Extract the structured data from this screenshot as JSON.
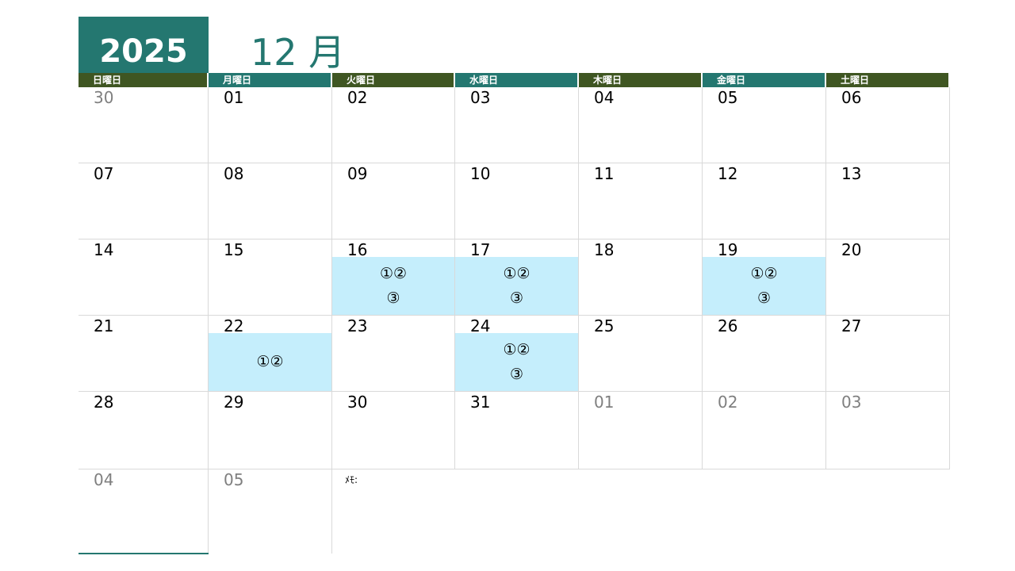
{
  "header": {
    "year": "2025",
    "month": "12 月"
  },
  "colors": {
    "teal": "#247770",
    "olive": "#3f5622",
    "highlight": "#c5eefc"
  },
  "weekdays": [
    {
      "label": "日曜日",
      "color": "#3f5622"
    },
    {
      "label": "月曜日",
      "color": "#247770"
    },
    {
      "label": "火曜日",
      "color": "#3f5622"
    },
    {
      "label": "水曜日",
      "color": "#247770"
    },
    {
      "label": "木曜日",
      "color": "#3f5622"
    },
    {
      "label": "金曜日",
      "color": "#247770"
    },
    {
      "label": "土曜日",
      "color": "#3f5622"
    }
  ],
  "weeks": [
    [
      {
        "day": "30",
        "other": true
      },
      {
        "day": "01"
      },
      {
        "day": "02"
      },
      {
        "day": "03"
      },
      {
        "day": "04"
      },
      {
        "day": "05"
      },
      {
        "day": "06"
      }
    ],
    [
      {
        "day": "07"
      },
      {
        "day": "08"
      },
      {
        "day": "09"
      },
      {
        "day": "10"
      },
      {
        "day": "11"
      },
      {
        "day": "12"
      },
      {
        "day": "13"
      }
    ],
    [
      {
        "day": "14"
      },
      {
        "day": "15"
      },
      {
        "day": "16",
        "marks": [
          "①②",
          "③"
        ]
      },
      {
        "day": "17",
        "marks": [
          "①②",
          "③"
        ]
      },
      {
        "day": "18"
      },
      {
        "day": "19",
        "marks": [
          "①②",
          "③"
        ]
      },
      {
        "day": "20"
      }
    ],
    [
      {
        "day": "21"
      },
      {
        "day": "22",
        "marks": [
          "①②"
        ]
      },
      {
        "day": "23"
      },
      {
        "day": "24",
        "marks": [
          "①②",
          "③"
        ]
      },
      {
        "day": "25"
      },
      {
        "day": "26"
      },
      {
        "day": "27"
      }
    ],
    [
      {
        "day": "28"
      },
      {
        "day": "29"
      },
      {
        "day": "30"
      },
      {
        "day": "31"
      },
      {
        "day": "01",
        "other": true
      },
      {
        "day": "02",
        "other": true
      },
      {
        "day": "03",
        "other": true
      }
    ],
    [
      {
        "day": "04",
        "other": true
      },
      {
        "day": "05",
        "other": true
      }
    ]
  ],
  "memo": {
    "label": "ﾒﾓ:"
  }
}
